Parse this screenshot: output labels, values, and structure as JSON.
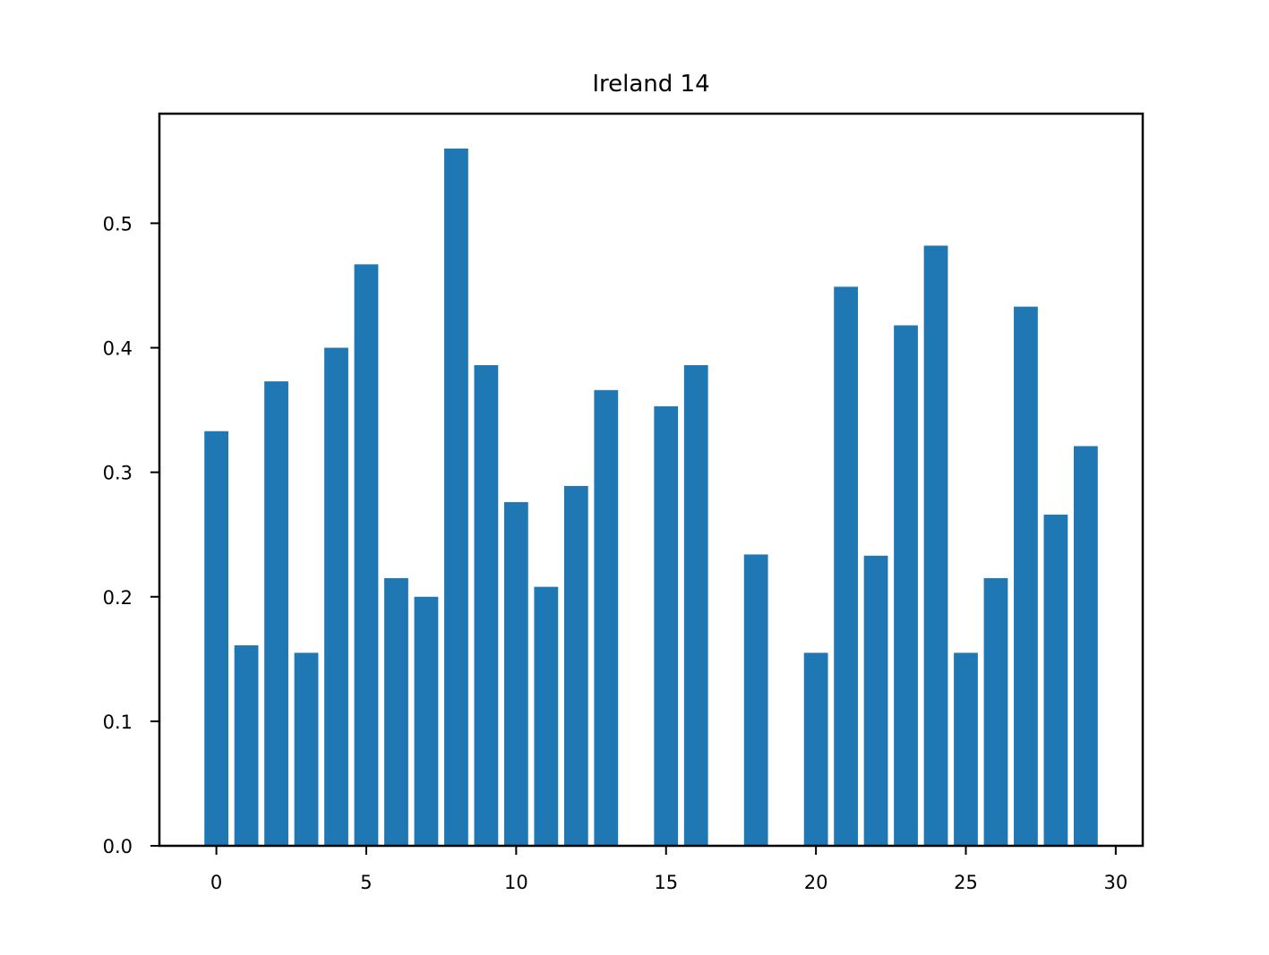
{
  "chart_data": {
    "type": "bar",
    "title": "Ireland 14",
    "xlabel": "",
    "ylabel": "",
    "x": [
      0,
      1,
      2,
      3,
      4,
      5,
      6,
      7,
      8,
      9,
      10,
      11,
      12,
      13,
      14,
      15,
      16,
      17,
      18,
      19,
      20,
      21,
      22,
      23,
      24,
      25,
      26,
      27,
      28,
      29
    ],
    "values": [
      0.333,
      0.161,
      0.373,
      0.155,
      0.4,
      0.467,
      0.215,
      0.2,
      0.56,
      0.386,
      0.276,
      0.208,
      0.289,
      0.366,
      0.0,
      0.353,
      0.386,
      0.0,
      0.234,
      0.0,
      0.155,
      0.449,
      0.233,
      0.418,
      0.482,
      0.155,
      0.215,
      0.433,
      0.266,
      0.321
    ],
    "xlim": [
      -1.9,
      30.9
    ],
    "ylim": [
      0,
      0.588
    ],
    "xticks": [
      0,
      5,
      10,
      15,
      20,
      25,
      30
    ],
    "xtick_labels": [
      "0",
      "5",
      "10",
      "15",
      "20",
      "25",
      "30"
    ],
    "yticks": [
      0.0,
      0.1,
      0.2,
      0.3,
      0.4,
      0.5
    ],
    "ytick_labels": [
      "0.0",
      "0.1",
      "0.2",
      "0.3",
      "0.4",
      "0.5"
    ],
    "bar_color": "#1f77b4",
    "grid": false,
    "legend": "none"
  }
}
